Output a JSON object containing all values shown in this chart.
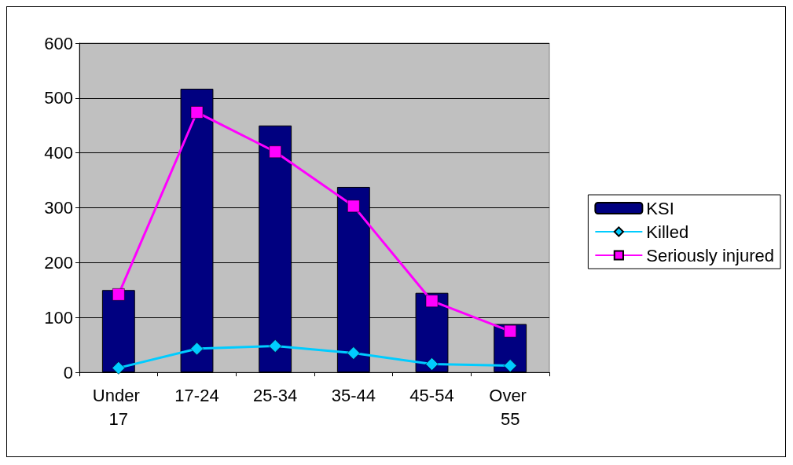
{
  "chart_data": {
    "type": "bar",
    "categories": [
      "Under 17",
      "17-24",
      "25-34",
      "35-44",
      "45-54",
      "Over 55"
    ],
    "series": [
      {
        "name": "KSI",
        "color": "#000080",
        "values": [
          150,
          517,
          450,
          338,
          145,
          88
        ]
      },
      {
        "name": "Killed",
        "type": "line",
        "color": "#00ccff",
        "marker": "diamond",
        "values": [
          8,
          43,
          48,
          35,
          15,
          12
        ]
      },
      {
        "name": "Seriously injured",
        "type": "line",
        "color": "#ff00ff",
        "marker": "square",
        "values": [
          142,
          474,
          402,
          303,
          130,
          75
        ]
      }
    ],
    "ylim": [
      0,
      600
    ],
    "yticks": [
      0,
      100,
      200,
      300,
      400,
      500,
      600
    ],
    "grid": "y",
    "legend": "right"
  }
}
